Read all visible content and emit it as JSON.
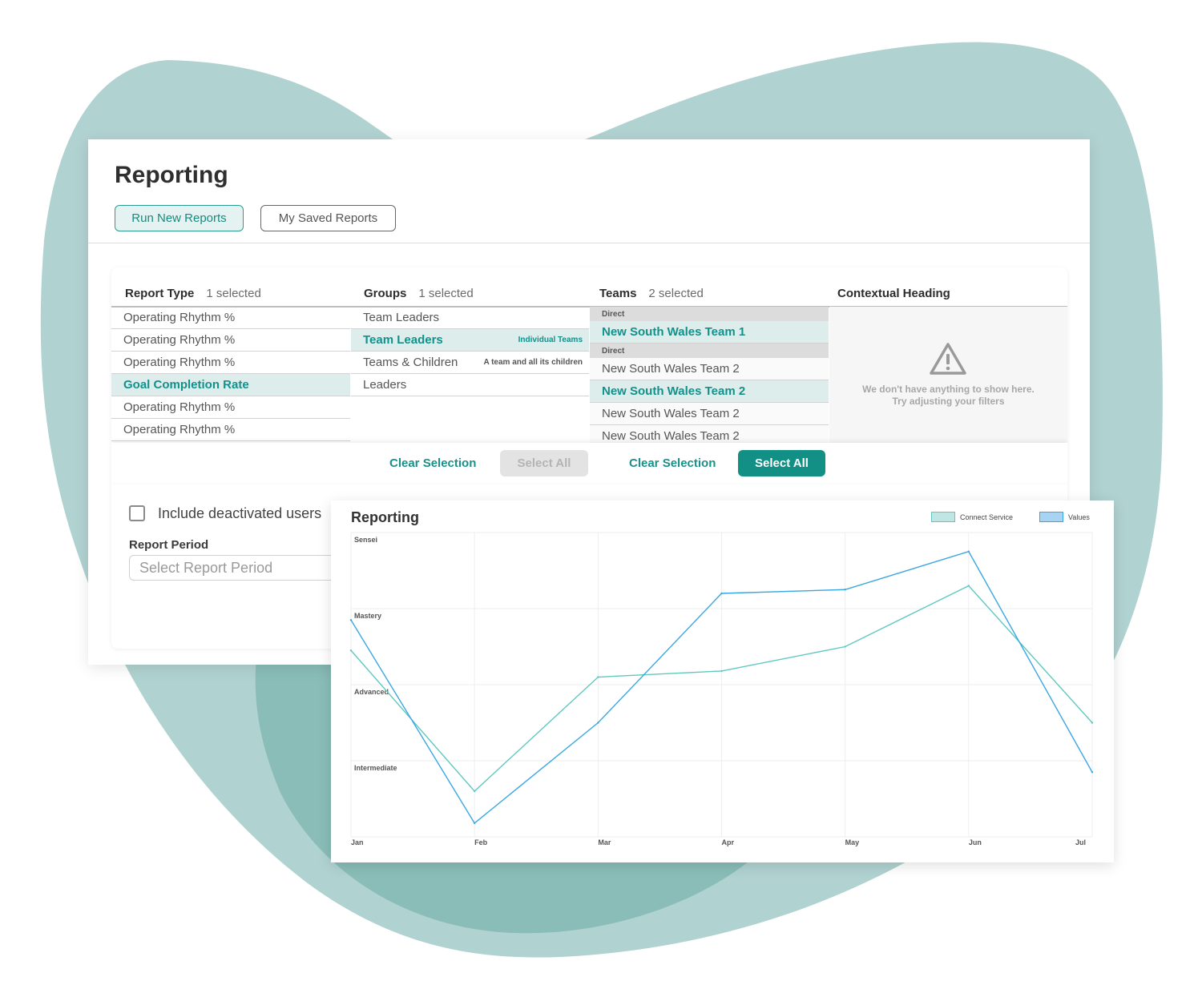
{
  "header": {
    "title": "Reporting",
    "tabs": [
      {
        "label": "Run New Reports",
        "active": true
      },
      {
        "label": "My Saved Reports",
        "active": false
      }
    ]
  },
  "filters": {
    "report_type": {
      "heading": "Report Type",
      "count": "1 selected",
      "items": [
        {
          "label": "Operating Rhythm %",
          "selected": false
        },
        {
          "label": "Operating Rhythm %",
          "selected": false
        },
        {
          "label": "Operating Rhythm %",
          "selected": false
        },
        {
          "label": "Goal Completion Rate",
          "selected": true
        },
        {
          "label": "Operating Rhythm %",
          "selected": false
        },
        {
          "label": "Operating Rhythm %",
          "selected": false
        }
      ]
    },
    "groups": {
      "heading": "Groups",
      "count": "1 selected",
      "items": [
        {
          "label": "Team Leaders",
          "hint": "",
          "selected": false
        },
        {
          "label": "Team Leaders",
          "hint": "Individual Teams",
          "selected": true
        },
        {
          "label": "Teams & Children",
          "hint": "A team and all its children",
          "selected": false
        },
        {
          "label": "Leaders",
          "hint": "",
          "selected": false
        }
      ]
    },
    "teams": {
      "heading": "Teams",
      "count": "2 selected",
      "subheading_1": "Direct",
      "item_1": "New South Wales Team 1",
      "subheading_2": "Direct",
      "item_2": "New South Wales Team 2",
      "item_3": "New South Wales Team 2",
      "item_4": "New South Wales Team 2",
      "item_5": "New South Wales Team 2"
    },
    "contextual": {
      "heading": "Contextual Heading",
      "empty_line1": "We don't have anything to show here.",
      "empty_line2": "Try adjusting your filters",
      "icon": "warning-icon"
    },
    "actions": {
      "clear_groups": "Clear Selection",
      "select_all_groups": "Select All",
      "clear_teams": "Clear Selection",
      "select_all_teams": "Select All"
    },
    "include_deactivated": {
      "label": "Include deactivated users",
      "checked": false
    },
    "report_period": {
      "label": "Report Period",
      "placeholder": "Select Report Period"
    }
  },
  "chart_panel": {
    "title": "Reporting"
  },
  "chart_data": {
    "type": "line",
    "title": "Reporting",
    "categories": [
      "Jan",
      "Feb",
      "Mar",
      "Apr",
      "May",
      "Jun",
      "Jul"
    ],
    "y_levels": [
      "Intermediate",
      "Advanced",
      "Mastery",
      "Sensei"
    ],
    "ylim": [
      0,
      4
    ],
    "grid": true,
    "legend_position": "top-right",
    "series": [
      {
        "name": "Connect Service",
        "color": "#5fc9c0",
        "swatch": "#bfe6e2",
        "values": [
          2.45,
          0.6,
          2.1,
          2.18,
          2.5,
          3.3,
          1.5
        ]
      },
      {
        "name": "Values",
        "color": "#3aa7e3",
        "swatch": "#a7d4f3",
        "values": [
          2.85,
          0.18,
          1.5,
          3.2,
          3.25,
          3.75,
          0.85
        ]
      }
    ]
  },
  "colors": {
    "accent": "#129086",
    "background_blob": "#b0d2d0",
    "background_blob_dark": "#8abdb8"
  }
}
